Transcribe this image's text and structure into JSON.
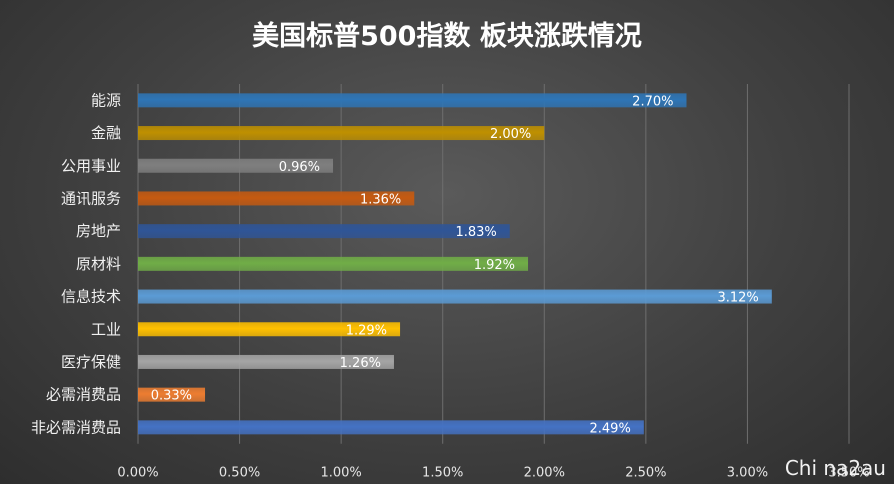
{
  "chart_data": {
    "type": "bar",
    "orientation": "horizontal",
    "title": "美国标普500指数 板块涨跌情况",
    "categories": [
      "能源",
      "金融",
      "公用事业",
      "通讯服务",
      "房地产",
      "原材料",
      "信息技术",
      "工业",
      "医疗保健",
      "必需消费品",
      "非必需消费品"
    ],
    "values": [
      2.7,
      2.0,
      0.96,
      1.36,
      1.83,
      1.92,
      3.12,
      1.29,
      1.26,
      0.33,
      2.49
    ],
    "data_labels": [
      "2.70%",
      "2.00%",
      "0.96%",
      "1.36%",
      "1.83%",
      "1.92%",
      "3.12%",
      "1.29%",
      "1.26%",
      "0.33%",
      "2.49%"
    ],
    "bar_colors": [
      "#2e75b6",
      "#bf9000",
      "#7f7f7f",
      "#c55a11",
      "#2f5597",
      "#70ad47",
      "#5b9bd5",
      "#ffc000",
      "#a5a5a5",
      "#ed7d31",
      "#4472c4"
    ],
    "xlim": [
      0,
      3.5
    ],
    "xticks": [
      "0.00%",
      "0.50%",
      "1.00%",
      "1.50%",
      "2.00%",
      "2.50%",
      "3.00%",
      "3.50%"
    ],
    "xlabel": "",
    "ylabel": "",
    "grid": "vertical",
    "legend": "none"
  },
  "watermark": "Chi na2au"
}
